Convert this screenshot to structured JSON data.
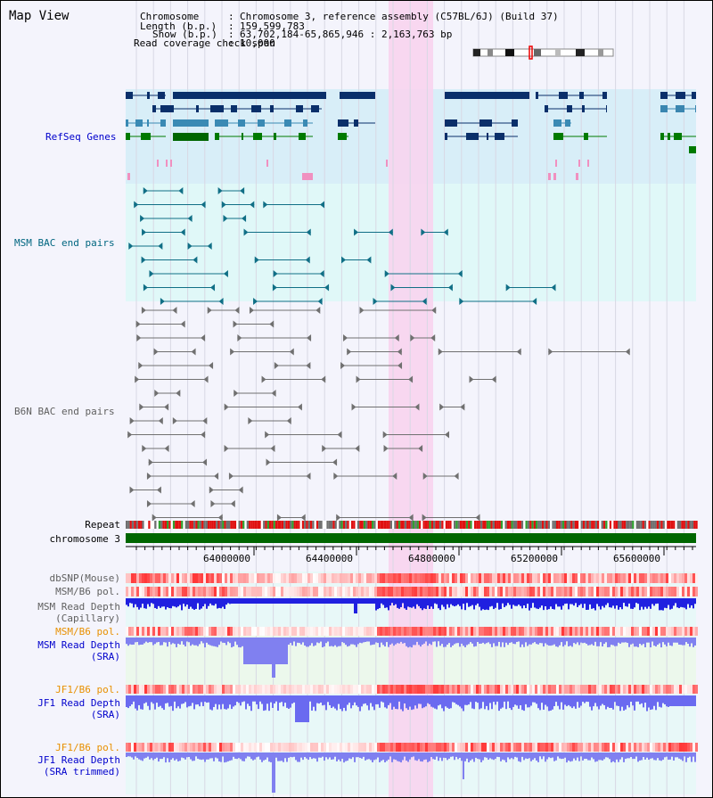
{
  "window": {
    "title": "Map View"
  },
  "header": {
    "chromosome_key": "Chromosome",
    "chromosome_value": "Chromosome 3, reference assembly (C57BL/6J) (Build 37)",
    "length_key": "Length (b.p.)",
    "length_value": "159,599,783",
    "show_key": "Show (b.p.)",
    "show_value": "63,702,184-65,865,946 : 2,163,763 bp",
    "coverage_key": "Read coverage check span",
    "coverage_value": "10,000"
  },
  "tracks": {
    "refseq": "RefSeq Genes",
    "msm_bac": "MSM BAC end pairs",
    "b6n_bac": "B6N BAC end pairs",
    "repeat": "Repeat",
    "chromosome": "chromosome 3",
    "dbsnp": "dbSNP(Mouse)",
    "msm_b6_pol": "MSM/B6 pol.",
    "msm_rd_cap_1": "MSM Read Depth",
    "msm_rd_cap_2": "(Capillary)",
    "msm_b6_pol_2": "MSM/B6 pol.",
    "msm_rd_sra_1": "MSM Read Depth",
    "msm_rd_sra_2": "(SRA)",
    "jf1_b6_pol": "JF1/B6 pol.",
    "jf1_rd_sra_1": "JF1 Read Depth",
    "jf1_rd_sra_2": "(SRA)",
    "jf1_b6_pol_2": "JF1/B6 pol.",
    "jf1_rd_trim_1": "JF1 Read Depth",
    "jf1_rd_trim_2": "(SRA trimmed)"
  },
  "axis": {
    "ticks": [
      "64000000",
      "64400000",
      "64800000",
      "65200000",
      "65600000"
    ]
  },
  "colors": {
    "refseq_label": "#0000cc",
    "msm_label": "#006680",
    "b6n_label": "#606060",
    "pol_orange": "#e89000",
    "blue_label": "#0000cc",
    "highlight": "#f8d4ee",
    "chromosome_bar": "#006600",
    "refseq_bg": "#d8eef8",
    "msm_bg": "#e0f8f8"
  }
}
